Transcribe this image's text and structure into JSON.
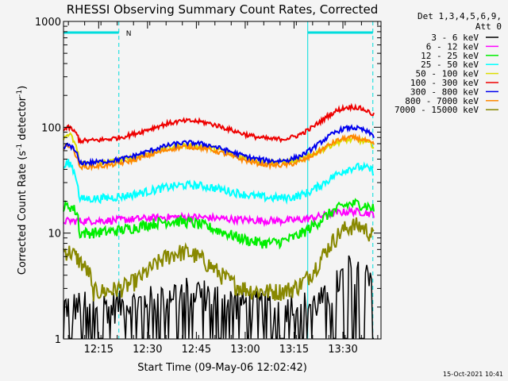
{
  "chart_data": {
    "type": "line",
    "title": "RHESSI Observing Summary Count Rates, Corrected",
    "xlabel": "Start Time (09-May-06 12:02:42)",
    "ylabel_main": "Corrected Count Rate (s",
    "ylabel_sup1": "-1",
    "ylabel_mid": " detector",
    "ylabel_sup2": "-1",
    "ylabel_end": ")",
    "x_range_min": [
      0,
      54
    ],
    "xticks": [
      {
        "min": 14.3,
        "label": "12:15"
      },
      {
        "min": 29.3,
        "label": "12:30"
      },
      {
        "min": 44.3,
        "label": "12:45"
      },
      {
        "min": 59.3,
        "label": "13:00"
      },
      {
        "min": 74.3,
        "label": "13:15"
      },
      {
        "min": 89.3,
        "label": "13:30"
      }
    ],
    "x_range": [
      3.5,
      101
    ],
    "yscale": "log",
    "ylim": [
      1,
      1000
    ],
    "yticks": [
      {
        "v": 1,
        "label": "1"
      },
      {
        "v": 10,
        "label": "10"
      },
      {
        "v": 100,
        "label": "100"
      },
      {
        "v": 1000,
        "label": "1000"
      }
    ],
    "legend_header": [
      "Det 1,3,4,5,6,9,",
      "Att 0"
    ],
    "series": [
      {
        "name": "3 - 6 keV",
        "color": "#000000"
      },
      {
        "name": "6 - 12 keV",
        "color": "#ff00ff"
      },
      {
        "name": "12 - 25 keV",
        "color": "#00ee00"
      },
      {
        "name": "25 - 50 keV",
        "color": "#00ffff"
      },
      {
        "name": "50 - 100 keV",
        "color": "#dddd00"
      },
      {
        "name": "100 - 300 keV",
        "color": "#ee0000"
      },
      {
        "name": "300 - 800 keV",
        "color": "#0000ee"
      },
      {
        "name": "800 - 7000 keV",
        "color": "#ff8800"
      },
      {
        "name": "7000 - 15000 keV",
        "color": "#888800"
      }
    ],
    "night_bar_label": "N",
    "vlines_min": [
      3.5,
      20.5,
      78.5,
      98.5
    ],
    "timestamp": "15-Oct-2021 10:41"
  }
}
